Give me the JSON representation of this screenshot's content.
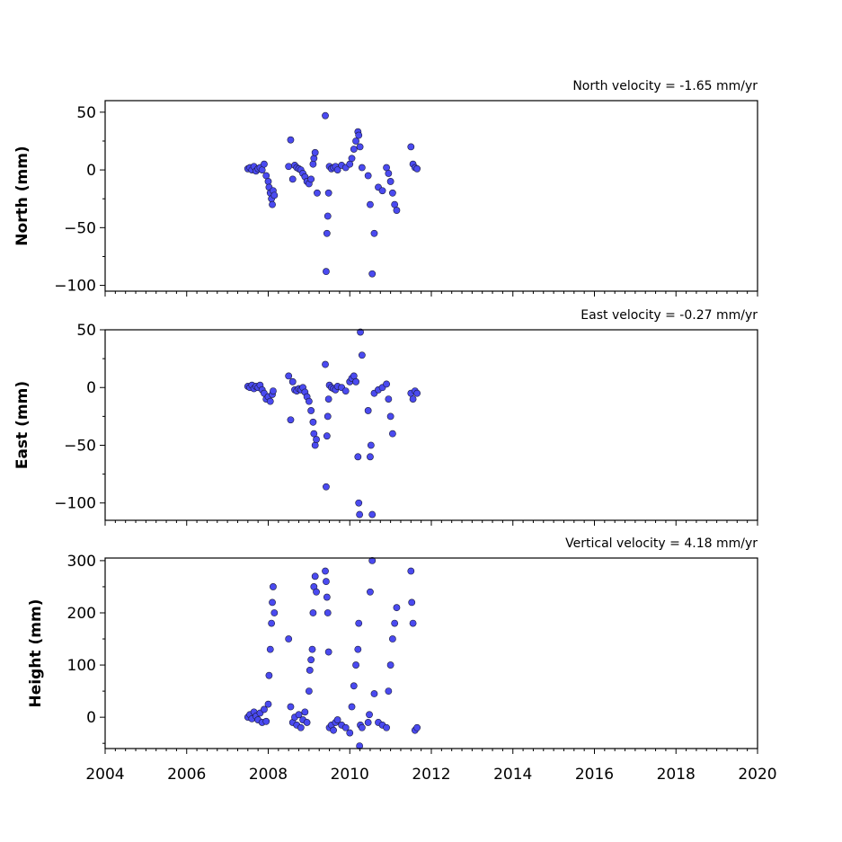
{
  "chart_data": [
    {
      "type": "scatter",
      "title": "North velocity = -1.65 mm/yr",
      "ylabel": "North (mm)",
      "ylim": [
        -105,
        60
      ],
      "yticks": [
        -100,
        -50,
        0,
        50
      ],
      "xlim": [
        2004,
        2020
      ],
      "x": [
        2007.5,
        2007.55,
        2007.6,
        2007.65,
        2007.7,
        2007.75,
        2007.8,
        2007.85,
        2007.9,
        2007.95,
        2008.0,
        2008.02,
        2008.05,
        2008.08,
        2008.1,
        2008.12,
        2008.15,
        2008.5,
        2008.55,
        2008.6,
        2008.65,
        2008.7,
        2008.75,
        2008.8,
        2008.85,
        2008.9,
        2008.95,
        2009.0,
        2009.05,
        2009.1,
        2009.12,
        2009.15,
        2009.2,
        2009.4,
        2009.42,
        2009.44,
        2009.46,
        2009.48,
        2009.5,
        2009.55,
        2009.6,
        2009.65,
        2009.7,
        2009.8,
        2009.9,
        2010.0,
        2010.05,
        2010.1,
        2010.15,
        2010.2,
        2010.22,
        2010.25,
        2010.3,
        2010.45,
        2010.5,
        2010.55,
        2010.6,
        2010.7,
        2010.8,
        2010.9,
        2010.95,
        2011.0,
        2011.05,
        2011.1,
        2011.15,
        2011.5,
        2011.55,
        2011.6,
        2011.65
      ],
      "y": [
        1,
        2,
        0,
        3,
        -1,
        1,
        2,
        0,
        5,
        -5,
        -10,
        -15,
        -20,
        -25,
        -30,
        -18,
        -22,
        3,
        26,
        -8,
        4,
        2,
        1,
        0,
        -3,
        -6,
        -10,
        -12,
        -8,
        5,
        10,
        15,
        -20,
        47,
        -88,
        -55,
        -40,
        -20,
        3,
        1,
        2,
        3,
        0,
        4,
        2,
        5,
        10,
        18,
        25,
        33,
        30,
        20,
        2,
        -5,
        -30,
        -90,
        -55,
        -15,
        -18,
        2,
        -3,
        -10,
        -20,
        -30,
        -35,
        20,
        5,
        2,
        1
      ]
    },
    {
      "type": "scatter",
      "title": "East velocity = -0.27 mm/yr",
      "ylabel": "East (mm)",
      "ylim": [
        -115,
        50
      ],
      "yticks": [
        -100,
        -50,
        0,
        50
      ],
      "xlim": [
        2004,
        2020
      ],
      "x": [
        2007.5,
        2007.55,
        2007.6,
        2007.65,
        2007.7,
        2007.75,
        2007.8,
        2007.85,
        2007.9,
        2007.95,
        2008.0,
        2008.05,
        2008.1,
        2008.12,
        2008.5,
        2008.55,
        2008.6,
        2008.65,
        2008.7,
        2008.75,
        2008.8,
        2008.85,
        2008.9,
        2008.95,
        2009.0,
        2009.05,
        2009.1,
        2009.12,
        2009.15,
        2009.18,
        2009.4,
        2009.42,
        2009.44,
        2009.46,
        2009.48,
        2009.5,
        2009.55,
        2009.6,
        2009.65,
        2009.7,
        2009.8,
        2009.9,
        2010.0,
        2010.05,
        2010.1,
        2010.15,
        2010.2,
        2010.22,
        2010.24,
        2010.26,
        2010.3,
        2010.45,
        2010.5,
        2010.52,
        2010.55,
        2010.6,
        2010.7,
        2010.8,
        2010.9,
        2010.95,
        2011.0,
        2011.05,
        2011.5,
        2011.55,
        2011.6,
        2011.65
      ],
      "y": [
        1,
        0,
        2,
        -1,
        1,
        0,
        2,
        -2,
        -5,
        -10,
        -8,
        -12,
        -6,
        -3,
        10,
        -28,
        5,
        -2,
        -3,
        -1,
        -2,
        0,
        -4,
        -8,
        -12,
        -20,
        -30,
        -40,
        -50,
        -45,
        20,
        -86,
        -42,
        -25,
        -10,
        2,
        0,
        -1,
        -2,
        1,
        0,
        -3,
        5,
        8,
        10,
        5,
        -60,
        -100,
        -110,
        48,
        28,
        -20,
        -60,
        -50,
        -110,
        -5,
        -2,
        0,
        3,
        -10,
        -25,
        -40,
        -5,
        -10,
        -3,
        -5
      ]
    },
    {
      "type": "scatter",
      "title": "Vertical velocity = 4.18 mm/yr",
      "ylabel": "Height (mm)",
      "ylim": [
        -60,
        305
      ],
      "yticks": [
        0,
        100,
        200,
        300
      ],
      "xlabel": "",
      "xlim": [
        2004,
        2020
      ],
      "xticks": [
        2004,
        2006,
        2008,
        2010,
        2012,
        2014,
        2016,
        2018,
        2020
      ],
      "x": [
        2007.5,
        2007.55,
        2007.6,
        2007.65,
        2007.7,
        2007.75,
        2007.8,
        2007.85,
        2007.9,
        2007.95,
        2008.0,
        2008.02,
        2008.05,
        2008.08,
        2008.1,
        2008.12,
        2008.15,
        2008.5,
        2008.55,
        2008.6,
        2008.65,
        2008.7,
        2008.75,
        2008.8,
        2008.85,
        2008.9,
        2008.95,
        2009.0,
        2009.02,
        2009.05,
        2009.08,
        2009.1,
        2009.12,
        2009.15,
        2009.18,
        2009.4,
        2009.42,
        2009.44,
        2009.46,
        2009.48,
        2009.5,
        2009.55,
        2009.6,
        2009.65,
        2009.7,
        2009.8,
        2009.9,
        2010.0,
        2010.05,
        2010.1,
        2010.15,
        2010.2,
        2010.22,
        2010.24,
        2010.26,
        2010.3,
        2010.45,
        2010.48,
        2010.5,
        2010.55,
        2010.6,
        2010.7,
        2010.8,
        2010.9,
        2010.95,
        2011.0,
        2011.05,
        2011.1,
        2011.15,
        2011.5,
        2011.52,
        2011.55,
        2011.6,
        2011.65
      ],
      "y": [
        0,
        5,
        -3,
        10,
        2,
        -5,
        8,
        -10,
        15,
        -8,
        25,
        80,
        130,
        180,
        220,
        250,
        200,
        150,
        20,
        -10,
        0,
        -15,
        5,
        -20,
        -5,
        10,
        -10,
        50,
        90,
        110,
        130,
        200,
        250,
        270,
        240,
        280,
        260,
        230,
        200,
        125,
        -20,
        -15,
        -25,
        -10,
        -5,
        -15,
        -20,
        -30,
        20,
        60,
        100,
        130,
        180,
        -55,
        -15,
        -20,
        -10,
        5,
        240,
        300,
        45,
        -10,
        -15,
        -20,
        50,
        100,
        150,
        180,
        210,
        280,
        220,
        180,
        -25,
        -20
      ]
    }
  ]
}
